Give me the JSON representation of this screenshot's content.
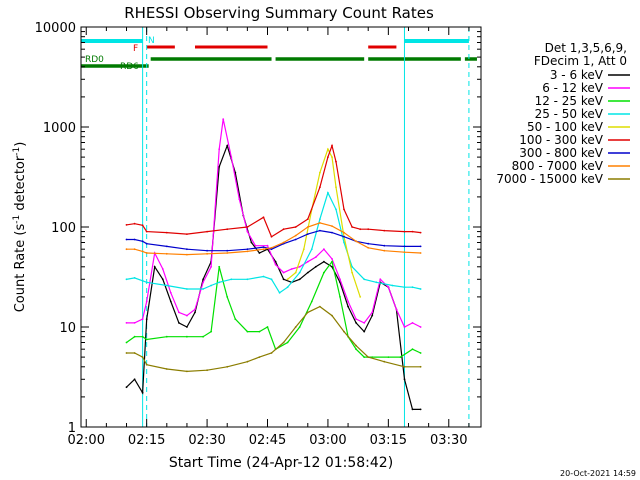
{
  "chart_data": {
    "type": "line",
    "title": "RHESSI Observing Summary Count Rates",
    "xlabel": "Start Time (24-Apr-12 01:58:42)",
    "ylabel_main": "Count Rate (s",
    "ylabel_sup1": "-1",
    "ylabel_mid": " detector",
    "ylabel_sup2": "-1",
    "ylabel_end": ")",
    "y_scale": "log",
    "ylim": [
      1,
      10000
    ],
    "xlim": [
      "01:58:42",
      "03:38:00"
    ],
    "x_ticks": [
      "02:00",
      "02:15",
      "02:30",
      "02:45",
      "03:00",
      "03:15",
      "03:30"
    ],
    "y_ticks": [
      "1",
      "10",
      "100",
      "1000",
      "10000"
    ],
    "legend_header": [
      "Det 1,3,5,6,9,",
      "FDecim 1, Att 0"
    ],
    "legend_position": "right",
    "footer_date": "20-Oct-2021 14:59",
    "annotations": {
      "N": "N",
      "F": "F",
      "RD0": "RD0",
      "RD6": "RD6",
      "night_color": "#00e5e5",
      "flare_color": "#e00000",
      "decim_color": "#007a00",
      "night_bars": [
        [
          "01:58:42",
          "02:14:00"
        ],
        [
          "03:19:00",
          "03:35:00"
        ]
      ],
      "flare_bars": [
        [
          "02:15:00",
          "02:22:00"
        ],
        [
          "02:27:00",
          "02:45:00"
        ],
        [
          "03:10:00",
          "03:17:00"
        ]
      ],
      "decim_bars": [
        [
          "01:58:42",
          "02:15:30"
        ],
        [
          "02:16:00",
          "02:46:00"
        ],
        [
          "02:47:00",
          "03:09:00"
        ],
        [
          "03:10:00",
          "03:33:00"
        ],
        [
          "03:34:00",
          "03:37:00"
        ]
      ],
      "night_lines": [
        "02:14:00",
        "03:19:00"
      ],
      "saa_lines": [
        "02:15:00",
        "03:35:00"
      ]
    },
    "series": [
      {
        "name": "3 - 6 keV",
        "color": "#000000",
        "points": [
          [
            "02:10",
            2.5
          ],
          [
            "02:12",
            3
          ],
          [
            "02:14",
            2.2
          ],
          [
            "02:15",
            12
          ],
          [
            "02:17",
            40
          ],
          [
            "02:19",
            30
          ],
          [
            "02:21",
            18
          ],
          [
            "02:23",
            11
          ],
          [
            "02:25",
            10
          ],
          [
            "02:27",
            14
          ],
          [
            "02:29",
            30
          ],
          [
            "02:31",
            45
          ],
          [
            "02:33",
            400
          ],
          [
            "02:35",
            650
          ],
          [
            "02:37",
            350
          ],
          [
            "02:39",
            130
          ],
          [
            "02:41",
            70
          ],
          [
            "02:43",
            55
          ],
          [
            "02:45",
            60
          ],
          [
            "02:47",
            45
          ],
          [
            "02:49",
            30
          ],
          [
            "02:51",
            28
          ],
          [
            "02:53",
            30
          ],
          [
            "02:55",
            35
          ],
          [
            "02:57",
            40
          ],
          [
            "02:59",
            45
          ],
          [
            "03:01",
            40
          ],
          [
            "03:03",
            28
          ],
          [
            "03:05",
            16
          ],
          [
            "03:07",
            11
          ],
          [
            "03:09",
            9
          ],
          [
            "03:11",
            13
          ],
          [
            "03:13",
            28
          ],
          [
            "03:15",
            25
          ],
          [
            "03:17",
            15
          ],
          [
            "03:19",
            3
          ],
          [
            "03:21",
            1.5
          ],
          [
            "03:23",
            1.5
          ]
        ]
      },
      {
        "name": "6 - 12 keV",
        "color": "#ff00ff",
        "points": [
          [
            "02:10",
            11
          ],
          [
            "02:12",
            11
          ],
          [
            "02:14",
            12
          ],
          [
            "02:15",
            18
          ],
          [
            "02:17",
            55
          ],
          [
            "02:19",
            38
          ],
          [
            "02:21",
            22
          ],
          [
            "02:23",
            14
          ],
          [
            "02:25",
            13
          ],
          [
            "02:27",
            15
          ],
          [
            "02:29",
            28
          ],
          [
            "02:31",
            40
          ],
          [
            "02:33",
            600
          ],
          [
            "02:34",
            1200
          ],
          [
            "02:36",
            500
          ],
          [
            "02:38",
            190
          ],
          [
            "02:40",
            90
          ],
          [
            "02:42",
            65
          ],
          [
            "02:45",
            65
          ],
          [
            "02:47",
            42
          ],
          [
            "02:49",
            35
          ],
          [
            "02:51",
            38
          ],
          [
            "02:53",
            40
          ],
          [
            "02:55",
            45
          ],
          [
            "02:57",
            50
          ],
          [
            "02:59",
            60
          ],
          [
            "03:01",
            48
          ],
          [
            "03:03",
            30
          ],
          [
            "03:05",
            18
          ],
          [
            "03:07",
            12
          ],
          [
            "03:09",
            11
          ],
          [
            "03:11",
            14
          ],
          [
            "03:13",
            30
          ],
          [
            "03:15",
            25
          ],
          [
            "03:17",
            15
          ],
          [
            "03:19",
            10
          ],
          [
            "03:21",
            11
          ],
          [
            "03:23",
            10
          ]
        ]
      },
      {
        "name": "12 - 25 keV",
        "color": "#00e000",
        "points": [
          [
            "02:10",
            7
          ],
          [
            "02:12",
            8
          ],
          [
            "02:14",
            8
          ],
          [
            "02:15",
            7.5
          ],
          [
            "02:20",
            8
          ],
          [
            "02:25",
            8
          ],
          [
            "02:29",
            8
          ],
          [
            "02:31",
            9
          ],
          [
            "02:33",
            40
          ],
          [
            "02:35",
            20
          ],
          [
            "02:37",
            12
          ],
          [
            "02:40",
            9
          ],
          [
            "02:43",
            9
          ],
          [
            "02:45",
            10
          ],
          [
            "02:47",
            6
          ],
          [
            "02:50",
            7
          ],
          [
            "02:53",
            10
          ],
          [
            "02:56",
            18
          ],
          [
            "02:59",
            35
          ],
          [
            "03:01",
            45
          ],
          [
            "03:03",
            20
          ],
          [
            "03:05",
            8
          ],
          [
            "03:07",
            6
          ],
          [
            "03:09",
            5
          ],
          [
            "03:11",
            5
          ],
          [
            "03:15",
            5
          ],
          [
            "03:18",
            5
          ],
          [
            "03:21",
            6
          ],
          [
            "03:23",
            5.5
          ]
        ]
      },
      {
        "name": "25 - 50 keV",
        "color": "#00e5e5",
        "points": [
          [
            "02:10",
            30
          ],
          [
            "02:12",
            31
          ],
          [
            "02:14",
            29
          ],
          [
            "02:15",
            28
          ],
          [
            "02:20",
            26
          ],
          [
            "02:25",
            24
          ],
          [
            "02:29",
            24
          ],
          [
            "02:31",
            26
          ],
          [
            "02:33",
            28
          ],
          [
            "02:36",
            30
          ],
          [
            "02:40",
            30
          ],
          [
            "02:44",
            32
          ],
          [
            "02:46",
            30
          ],
          [
            "02:48",
            22
          ],
          [
            "02:50",
            25
          ],
          [
            "02:53",
            35
          ],
          [
            "02:56",
            60
          ],
          [
            "02:58",
            120
          ],
          [
            "03:00",
            220
          ],
          [
            "03:02",
            150
          ],
          [
            "03:04",
            70
          ],
          [
            "03:06",
            40
          ],
          [
            "03:09",
            30
          ],
          [
            "03:12",
            28
          ],
          [
            "03:16",
            26
          ],
          [
            "03:19",
            25
          ],
          [
            "03:21",
            25
          ],
          [
            "03:23",
            24
          ]
        ]
      },
      {
        "name": "50 - 100 keV",
        "color": "#dddd00",
        "points": [
          [
            "02:50",
            30
          ],
          [
            "02:52",
            35
          ],
          [
            "02:54",
            60
          ],
          [
            "02:56",
            150
          ],
          [
            "02:58",
            350
          ],
          [
            "03:00",
            600
          ],
          [
            "03:01",
            500
          ],
          [
            "03:02",
            250
          ],
          [
            "03:04",
            80
          ],
          [
            "03:06",
            35
          ],
          [
            "03:08",
            20
          ]
        ]
      },
      {
        "name": "100 - 300 keV",
        "color": "#e00000",
        "points": [
          [
            "02:10",
            105
          ],
          [
            "02:12",
            108
          ],
          [
            "02:14",
            104
          ],
          [
            "02:15",
            90
          ],
          [
            "02:20",
            88
          ],
          [
            "02:25",
            85
          ],
          [
            "02:30",
            90
          ],
          [
            "02:35",
            95
          ],
          [
            "02:40",
            100
          ],
          [
            "02:44",
            125
          ],
          [
            "02:46",
            80
          ],
          [
            "02:49",
            95
          ],
          [
            "02:52",
            100
          ],
          [
            "02:55",
            120
          ],
          [
            "02:58",
            250
          ],
          [
            "03:00",
            500
          ],
          [
            "03:01",
            650
          ],
          [
            "03:02",
            450
          ],
          [
            "03:04",
            150
          ],
          [
            "03:06",
            100
          ],
          [
            "03:08",
            95
          ],
          [
            "03:10",
            95
          ],
          [
            "03:14",
            92
          ],
          [
            "03:19",
            90
          ],
          [
            "03:21",
            90
          ],
          [
            "03:23",
            88
          ]
        ]
      },
      {
        "name": "300 - 800 keV",
        "color": "#0000cc",
        "points": [
          [
            "02:10",
            75
          ],
          [
            "02:12",
            75
          ],
          [
            "02:14",
            72
          ],
          [
            "02:15",
            68
          ],
          [
            "02:20",
            64
          ],
          [
            "02:25",
            60
          ],
          [
            "02:30",
            58
          ],
          [
            "02:35",
            58
          ],
          [
            "02:40",
            60
          ],
          [
            "02:44",
            63
          ],
          [
            "02:46",
            60
          ],
          [
            "02:49",
            68
          ],
          [
            "02:52",
            75
          ],
          [
            "02:55",
            85
          ],
          [
            "02:58",
            92
          ],
          [
            "03:01",
            88
          ],
          [
            "03:04",
            80
          ],
          [
            "03:07",
            72
          ],
          [
            "03:10",
            68
          ],
          [
            "03:14",
            65
          ],
          [
            "03:19",
            64
          ],
          [
            "03:23",
            64
          ]
        ]
      },
      {
        "name": "800 - 7000 keV",
        "color": "#ff8000",
        "points": [
          [
            "02:10",
            60
          ],
          [
            "02:12",
            60
          ],
          [
            "02:14",
            57
          ],
          [
            "02:15",
            55
          ],
          [
            "02:20",
            54
          ],
          [
            "02:25",
            53
          ],
          [
            "02:30",
            54
          ],
          [
            "02:35",
            55
          ],
          [
            "02:40",
            57
          ],
          [
            "02:44",
            60
          ],
          [
            "02:46",
            62
          ],
          [
            "02:49",
            70
          ],
          [
            "02:52",
            82
          ],
          [
            "02:55",
            100
          ],
          [
            "02:58",
            110
          ],
          [
            "03:01",
            102
          ],
          [
            "03:04",
            88
          ],
          [
            "03:07",
            72
          ],
          [
            "03:10",
            62
          ],
          [
            "03:14",
            58
          ],
          [
            "03:19",
            56
          ],
          [
            "03:23",
            55
          ]
        ]
      },
      {
        "name": "7000 - 15000 keV",
        "color": "#8b7d00",
        "points": [
          [
            "02:10",
            5.5
          ],
          [
            "02:12",
            5.5
          ],
          [
            "02:14",
            5
          ],
          [
            "02:15",
            4.2
          ],
          [
            "02:20",
            3.8
          ],
          [
            "02:25",
            3.6
          ],
          [
            "02:30",
            3.7
          ],
          [
            "02:35",
            4
          ],
          [
            "02:40",
            4.5
          ],
          [
            "02:43",
            5
          ],
          [
            "02:46",
            5.5
          ],
          [
            "02:49",
            7
          ],
          [
            "02:52",
            10
          ],
          [
            "02:55",
            14
          ],
          [
            "02:58",
            16
          ],
          [
            "03:01",
            13
          ],
          [
            "03:04",
            9
          ],
          [
            "03:07",
            6.5
          ],
          [
            "03:10",
            5
          ],
          [
            "03:14",
            4.5
          ],
          [
            "03:19",
            4
          ],
          [
            "03:23",
            4
          ]
        ]
      }
    ]
  }
}
